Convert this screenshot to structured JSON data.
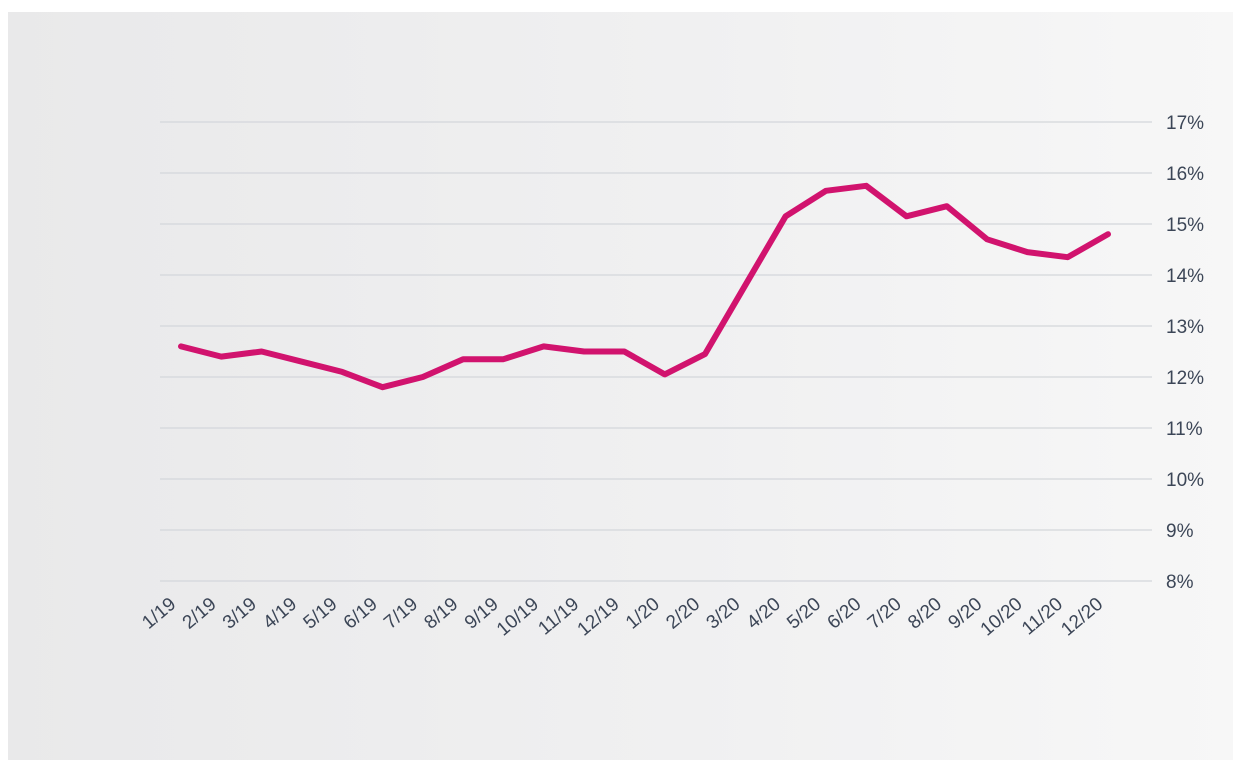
{
  "chart_data": {
    "type": "line",
    "x": [
      "1/19",
      "2/19",
      "3/19",
      "4/19",
      "5/19",
      "6/19",
      "7/19",
      "8/19",
      "9/19",
      "10/19",
      "11/19",
      "12/19",
      "1/20",
      "2/20",
      "3/20",
      "4/20",
      "5/20",
      "6/20",
      "7/20",
      "8/20",
      "9/20",
      "10/20",
      "11/20",
      "12/20"
    ],
    "series": [
      {
        "values": [
          12.6,
          12.4,
          12.5,
          12.3,
          12.1,
          11.8,
          12.0,
          12.35,
          12.35,
          12.6,
          12.5,
          12.5,
          12.05,
          12.45,
          13.8,
          15.15,
          15.65,
          15.75,
          15.15,
          15.35,
          14.7,
          14.45,
          14.35,
          14.8
        ],
        "color": "#d1136e"
      }
    ],
    "yticks": [
      "8%",
      "9%",
      "10%",
      "11%",
      "12%",
      "13%",
      "14%",
      "15%",
      "16%",
      "17%"
    ],
    "ylim": [
      8,
      17
    ],
    "y_axis_side": "right",
    "grid": true,
    "title": "",
    "xlabel": "",
    "ylabel": ""
  }
}
